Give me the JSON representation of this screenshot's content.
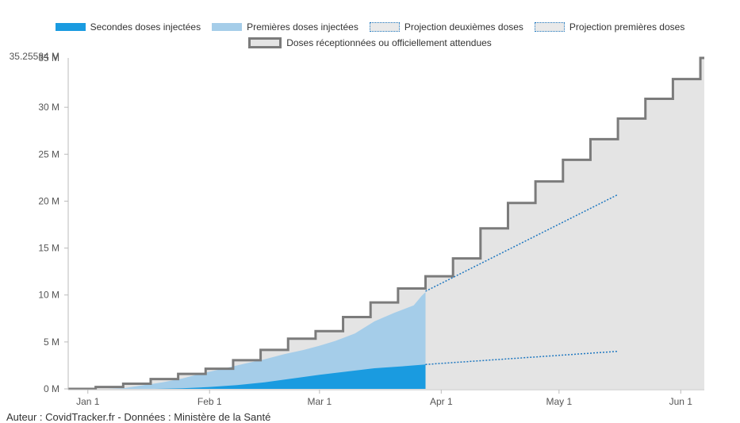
{
  "legend": {
    "second": "Secondes doses injectées",
    "first": "Premières doses injectées",
    "proj_second": "Projection deuxièmes doses",
    "proj_first": "Projection premières doses",
    "received": "Doses réceptionnées ou officiellement attendues"
  },
  "footer": "Auteur : CovidTracker.fr - Données : Ministère de la Santé",
  "colors": {
    "second": "#1a9be0",
    "first": "#a5cde9",
    "received_fill": "#e4e4e4",
    "received_line": "#7b7b7b",
    "projection": "#1f78c0"
  },
  "chart_data": {
    "type": "area",
    "x_axis": {
      "type": "date",
      "range": [
        "2020-12-27",
        "2021-06-07"
      ],
      "ticks": [
        {
          "date": "2021-01-01",
          "label": "Jan 1"
        },
        {
          "date": "2021-02-01",
          "label": "Feb 1"
        },
        {
          "date": "2021-03-01",
          "label": "Mar 1"
        },
        {
          "date": "2021-04-01",
          "label": "Apr 1"
        },
        {
          "date": "2021-05-01",
          "label": "May 1"
        },
        {
          "date": "2021-06-01",
          "label": "Jun 1"
        }
      ]
    },
    "y_axis": {
      "range": [
        0,
        35255840
      ],
      "ticks": [
        {
          "value": 0,
          "label": "0 M"
        },
        {
          "value": 5000000,
          "label": "5 M"
        },
        {
          "value": 10000000,
          "label": "10 M"
        },
        {
          "value": 15000000,
          "label": "15 M"
        },
        {
          "value": 20000000,
          "label": "20 M"
        },
        {
          "value": 25000000,
          "label": "25 M"
        },
        {
          "value": 30000000,
          "label": "30 M"
        }
      ],
      "max_label": "35.25584 M",
      "top_label": "35 M"
    },
    "grid": false,
    "legend_position": "top",
    "series": [
      {
        "name": "Doses réceptionnées ou officiellement attendues",
        "type": "step-area",
        "points": [
          {
            "x": "2020-12-27",
            "y": 0
          },
          {
            "x": "2021-01-03",
            "y": 200000
          },
          {
            "x": "2021-01-10",
            "y": 550000
          },
          {
            "x": "2021-01-17",
            "y": 1050000
          },
          {
            "x": "2021-01-24",
            "y": 1600000
          },
          {
            "x": "2021-01-31",
            "y": 2150000
          },
          {
            "x": "2021-02-07",
            "y": 3050000
          },
          {
            "x": "2021-02-14",
            "y": 4150000
          },
          {
            "x": "2021-02-21",
            "y": 5350000
          },
          {
            "x": "2021-02-28",
            "y": 6150000
          },
          {
            "x": "2021-03-07",
            "y": 7650000
          },
          {
            "x": "2021-03-14",
            "y": 9200000
          },
          {
            "x": "2021-03-21",
            "y": 10700000
          },
          {
            "x": "2021-03-28",
            "y": 12000000
          },
          {
            "x": "2021-04-04",
            "y": 13900000
          },
          {
            "x": "2021-04-11",
            "y": 17100000
          },
          {
            "x": "2021-04-18",
            "y": 19800000
          },
          {
            "x": "2021-04-25",
            "y": 22100000
          },
          {
            "x": "2021-05-02",
            "y": 24400000
          },
          {
            "x": "2021-05-09",
            "y": 26600000
          },
          {
            "x": "2021-05-16",
            "y": 28800000
          },
          {
            "x": "2021-05-23",
            "y": 30900000
          },
          {
            "x": "2021-05-30",
            "y": 33000000
          },
          {
            "x": "2021-06-06",
            "y": 35255840
          }
        ]
      },
      {
        "name": "Premières doses injectées",
        "type": "area",
        "points": [
          {
            "x": "2020-12-27",
            "y": 0
          },
          {
            "x": "2021-01-06",
            "y": 0
          },
          {
            "x": "2021-01-10",
            "y": 60000
          },
          {
            "x": "2021-01-15",
            "y": 380000
          },
          {
            "x": "2021-01-20",
            "y": 700000
          },
          {
            "x": "2021-01-25",
            "y": 1100000
          },
          {
            "x": "2021-01-30",
            "y": 1650000
          },
          {
            "x": "2021-02-05",
            "y": 2200000
          },
          {
            "x": "2021-02-10",
            "y": 2700000
          },
          {
            "x": "2021-02-15",
            "y": 3150000
          },
          {
            "x": "2021-02-20",
            "y": 3700000
          },
          {
            "x": "2021-02-25",
            "y": 4150000
          },
          {
            "x": "2021-03-01",
            "y": 4600000
          },
          {
            "x": "2021-03-05",
            "y": 5100000
          },
          {
            "x": "2021-03-10",
            "y": 5900000
          },
          {
            "x": "2021-03-15",
            "y": 7200000
          },
          {
            "x": "2021-03-20",
            "y": 8100000
          },
          {
            "x": "2021-03-25",
            "y": 8900000
          },
          {
            "x": "2021-03-27",
            "y": 9900000
          },
          {
            "x": "2021-03-28",
            "y": 10300000
          }
        ]
      },
      {
        "name": "Secondes doses injectées",
        "type": "area",
        "points": [
          {
            "x": "2020-12-27",
            "y": 0
          },
          {
            "x": "2021-01-18",
            "y": 0
          },
          {
            "x": "2021-01-25",
            "y": 60000
          },
          {
            "x": "2021-02-01",
            "y": 200000
          },
          {
            "x": "2021-02-08",
            "y": 400000
          },
          {
            "x": "2021-02-15",
            "y": 700000
          },
          {
            "x": "2021-02-22",
            "y": 1100000
          },
          {
            "x": "2021-03-01",
            "y": 1500000
          },
          {
            "x": "2021-03-08",
            "y": 1850000
          },
          {
            "x": "2021-03-15",
            "y": 2200000
          },
          {
            "x": "2021-03-22",
            "y": 2400000
          },
          {
            "x": "2021-03-28",
            "y": 2600000
          }
        ]
      },
      {
        "name": "Projection premières doses",
        "type": "line",
        "points": [
          {
            "x": "2021-03-28",
            "y": 10400000
          },
          {
            "x": "2021-05-16",
            "y": 20700000
          }
        ]
      },
      {
        "name": "Projection deuxièmes doses",
        "type": "line",
        "points": [
          {
            "x": "2021-03-28",
            "y": 2600000
          },
          {
            "x": "2021-05-16",
            "y": 4000000
          }
        ]
      }
    ]
  }
}
